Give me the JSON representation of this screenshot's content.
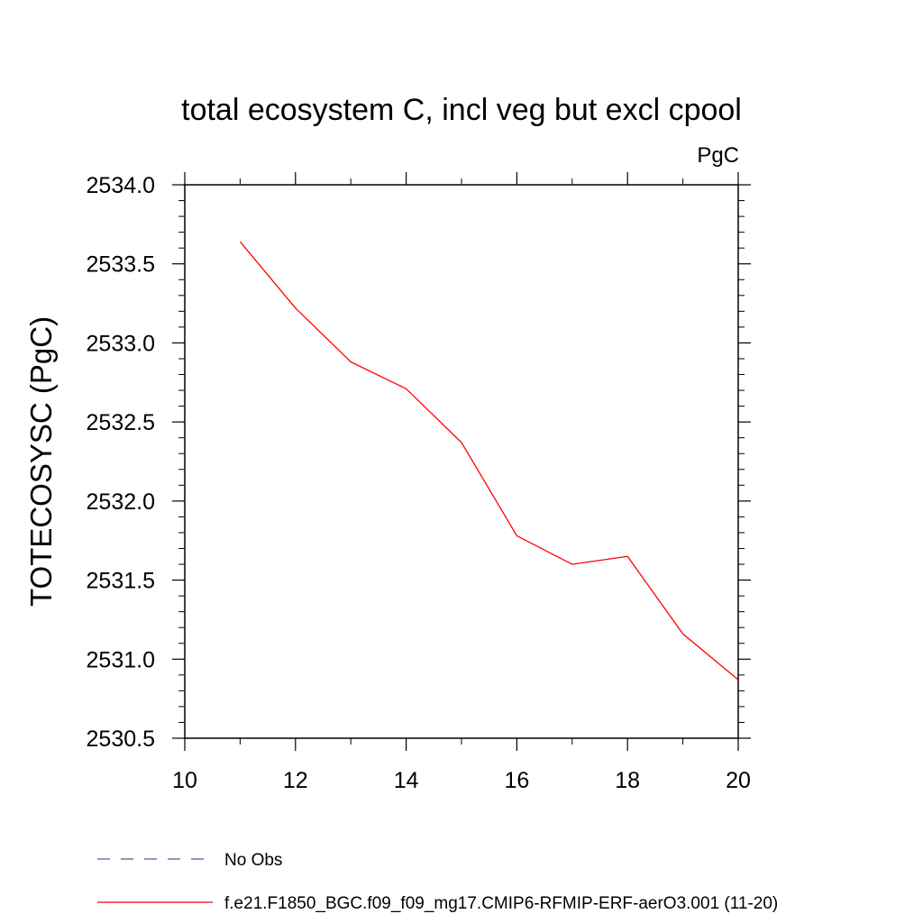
{
  "chart_data": {
    "type": "line",
    "title": "total ecosystem C, incl veg but excl cpool",
    "units": "PgC",
    "xlabel": "",
    "ylabel": "TOTECOSYSC  (PgC)",
    "xlim": [
      10,
      20
    ],
    "ylim": [
      2530.5,
      2534.0
    ],
    "xticks": [
      10,
      12,
      14,
      16,
      18,
      20
    ],
    "xtick_labels": [
      "10",
      "12",
      "14",
      "16",
      "18",
      "20"
    ],
    "yticks": [
      2530.5,
      2531.0,
      2531.5,
      2532.0,
      2532.5,
      2533.0,
      2533.5,
      2534.0
    ],
    "ytick_labels": [
      "2530.5",
      "2531.0",
      "2531.5",
      "2532.0",
      "2532.5",
      "2533.0",
      "2533.5",
      "2534.0"
    ],
    "x_minor_step": 1,
    "y_minor_step": 0.1,
    "grid": false,
    "legend_position": "bottom",
    "series": [
      {
        "name": "No Obs",
        "style": "dashed",
        "color": "#5a50a8",
        "x": [],
        "y": []
      },
      {
        "name": "f.e21.F1850_BGC.f09_f09_mg17.CMIP6-RFMIP-ERF-aerO3.001 (11-20)",
        "style": "solid",
        "color": "#ff0000",
        "x": [
          11,
          12,
          13,
          14,
          15,
          16,
          17,
          18,
          19,
          20
        ],
        "y": [
          2533.64,
          2533.22,
          2532.88,
          2532.71,
          2532.37,
          2531.78,
          2531.6,
          2531.65,
          2531.16,
          2530.87
        ]
      }
    ]
  }
}
